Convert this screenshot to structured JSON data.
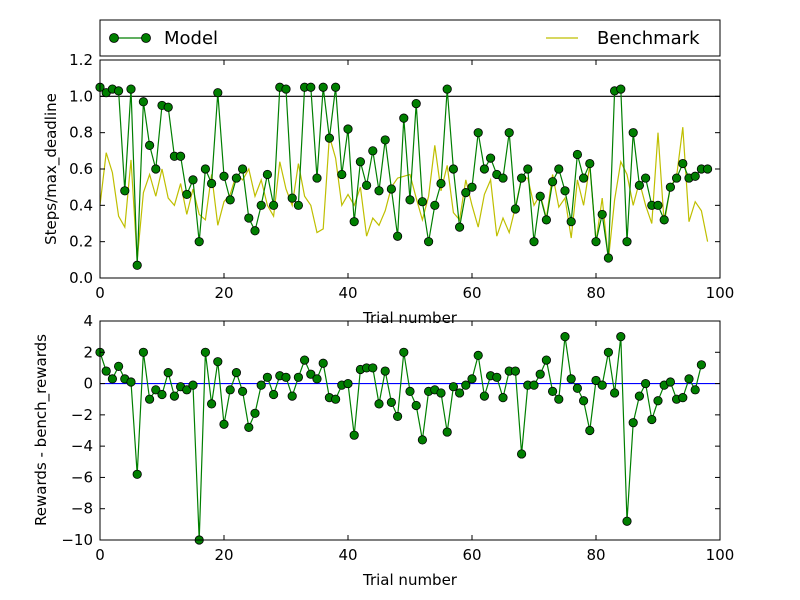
{
  "legend": {
    "model_label": "Model",
    "benchmark_label": "Benchmark",
    "placement": "top, outside plot, two columns"
  },
  "colors": {
    "model": "#007f00",
    "model_marker": "#007f00",
    "benchmark": "#bfbf00",
    "zero_line": "#0000ff",
    "reference_line": "#000000"
  },
  "chart_data": [
    {
      "type": "line",
      "xlabel": "Trial number",
      "ylabel": "Steps/max_deadline",
      "xlim": [
        0,
        100
      ],
      "ylim": [
        0,
        1.2
      ],
      "xticks": [
        0,
        20,
        40,
        60,
        80,
        100
      ],
      "yticks": [
        0.0,
        0.2,
        0.4,
        0.6,
        0.8,
        1.0,
        1.2
      ],
      "xtick_labels": [
        "0",
        "20",
        "40",
        "60",
        "80",
        "100"
      ],
      "ytick_labels": [
        "0.0",
        "0.2",
        "0.4",
        "0.6",
        "0.8",
        "1.0",
        "1.2"
      ],
      "reference_line_y": 1.0,
      "grid": false,
      "series": [
        {
          "name": "Model",
          "marker": "circle",
          "values": [
            1.05,
            1.02,
            1.04,
            1.03,
            0.48,
            1.04,
            0.07,
            0.97,
            0.73,
            0.6,
            0.95,
            0.94,
            0.67,
            0.67,
            0.46,
            0.54,
            0.2,
            0.6,
            0.52,
            1.02,
            0.56,
            0.43,
            0.55,
            0.6,
            0.33,
            0.26,
            0.4,
            0.57,
            0.4,
            1.05,
            1.04,
            0.44,
            0.4,
            1.05,
            1.05,
            0.55,
            1.05,
            0.77,
            1.05,
            0.57,
            0.82,
            0.31,
            0.64,
            0.51,
            0.7,
            0.48,
            0.76,
            0.49,
            0.23,
            0.88,
            0.43,
            0.96,
            0.42,
            0.2,
            0.4,
            0.52,
            1.04,
            0.6,
            0.28,
            0.47,
            0.5,
            0.8,
            0.6,
            0.66,
            0.57,
            0.55,
            0.8,
            0.38,
            0.55,
            0.6,
            0.2,
            0.45,
            0.32,
            0.53,
            0.6,
            0.48,
            0.31,
            0.68,
            0.55,
            0.63,
            0.2,
            0.35,
            0.11,
            1.03,
            1.04,
            0.2,
            0.8,
            0.51,
            0.55,
            0.4,
            0.4,
            0.32,
            0.5,
            0.55,
            0.63,
            0.55,
            0.56,
            0.6,
            0.6
          ]
        },
        {
          "name": "Benchmark",
          "marker": "none",
          "values": [
            0.4,
            0.69,
            0.58,
            0.34,
            0.28,
            0.65,
            0.1,
            0.47,
            0.57,
            0.45,
            0.6,
            0.44,
            0.4,
            0.52,
            0.35,
            0.49,
            0.35,
            0.32,
            0.57,
            0.29,
            0.42,
            0.46,
            0.57,
            0.54,
            0.6,
            0.45,
            0.54,
            0.4,
            0.34,
            0.64,
            0.49,
            0.4,
            0.63,
            0.45,
            0.4,
            0.25,
            0.27,
            0.78,
            0.66,
            0.4,
            0.46,
            0.4,
            0.5,
            0.23,
            0.33,
            0.29,
            0.37,
            0.5,
            0.55,
            0.56,
            0.57,
            0.44,
            0.32,
            0.45,
            0.73,
            0.48,
            0.62,
            0.36,
            0.32,
            0.54,
            0.4,
            0.28,
            0.46,
            0.54,
            0.23,
            0.33,
            0.25,
            0.39,
            0.55,
            0.55,
            0.4,
            0.46,
            0.33,
            0.57,
            0.39,
            0.44,
            0.22,
            0.54,
            0.4,
            0.62,
            0.2,
            0.44,
            0.1,
            0.43,
            0.64,
            0.57,
            0.4,
            0.53,
            0.4,
            0.3,
            0.8,
            0.3,
            0.5,
            0.56,
            0.83,
            0.31,
            0.42,
            0.37,
            0.2
          ]
        }
      ]
    },
    {
      "type": "line",
      "xlabel": "Trial number",
      "ylabel": "Rewards - bench_rewards",
      "xlim": [
        0,
        100
      ],
      "ylim": [
        -10,
        4
      ],
      "xticks": [
        0,
        20,
        40,
        60,
        80,
        100
      ],
      "yticks": [
        -10,
        -8,
        -6,
        -4,
        -2,
        0,
        2,
        4
      ],
      "xtick_labels": [
        "0",
        "20",
        "40",
        "60",
        "80",
        "100"
      ],
      "ytick_labels": [
        "−10",
        "−8",
        "−6",
        "−4",
        "−2",
        "0",
        "2",
        "4"
      ],
      "reference_line_y": 0,
      "grid": false,
      "series": [
        {
          "name": "Model",
          "marker": "circle",
          "values": [
            2.0,
            0.8,
            0.3,
            1.1,
            0.3,
            0.1,
            -5.8,
            2.0,
            -1.0,
            -0.4,
            -0.7,
            0.7,
            -0.8,
            -0.2,
            -0.4,
            -0.1,
            -10.0,
            2.0,
            -1.3,
            1.4,
            -2.6,
            -0.4,
            0.7,
            -0.5,
            -2.8,
            -1.9,
            -0.1,
            0.4,
            -0.7,
            0.5,
            0.4,
            -0.8,
            0.4,
            1.5,
            0.6,
            0.3,
            1.3,
            -0.9,
            -1.0,
            -0.1,
            0.0,
            -3.3,
            0.9,
            1.0,
            1.0,
            -1.3,
            0.8,
            -1.2,
            -2.1,
            2.0,
            -0.5,
            -1.4,
            -3.6,
            -0.5,
            -0.4,
            -0.6,
            -3.1,
            -0.2,
            -0.6,
            -0.1,
            0.3,
            1.8,
            -0.8,
            0.5,
            0.4,
            -0.9,
            0.8,
            0.8,
            -4.5,
            -0.1,
            -0.1,
            0.6,
            1.5,
            -0.5,
            -1.0,
            3.0,
            0.3,
            -0.3,
            -1.1,
            -3.0,
            0.2,
            -0.1,
            2.0,
            -0.6,
            3.0,
            -8.8,
            -2.5,
            -0.8,
            0.0,
            -2.3,
            -1.1,
            -0.1,
            0.1,
            -1.0,
            -0.9,
            0.3,
            -0.4,
            1.2
          ]
        }
      ]
    }
  ]
}
